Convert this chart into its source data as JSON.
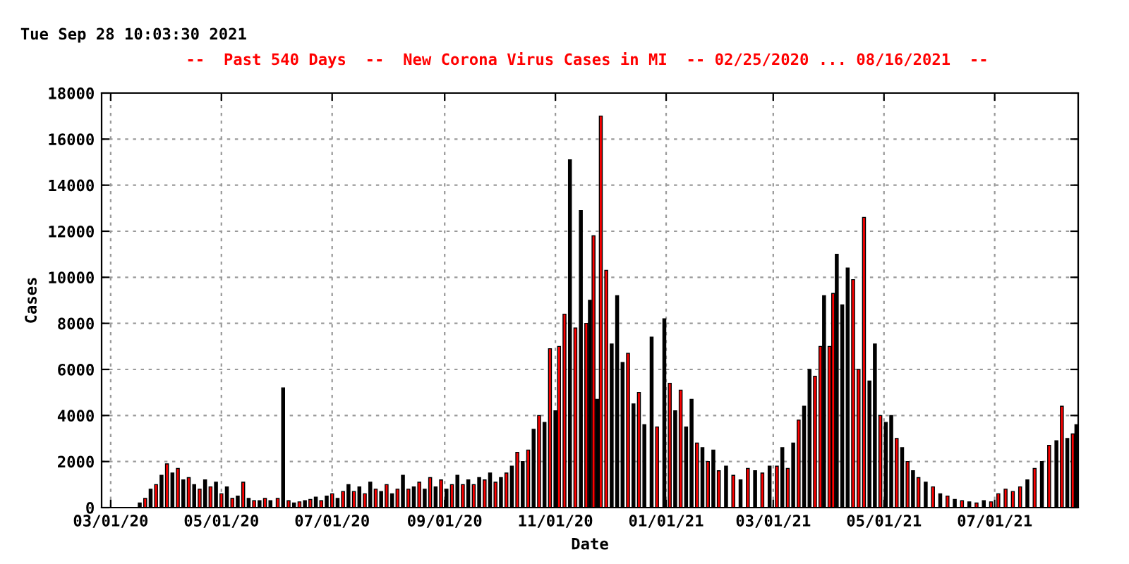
{
  "chart_data": {
    "type": "bar",
    "title": "--  Past 540 Days  --  New Corona Virus Cases in MI  -- 02/25/2020 ... 08/16/2021  --",
    "annotations": [
      "Tue Sep 28 10:03:30 2021"
    ],
    "xlabel": "Date",
    "ylabel": "Cases",
    "series": [
      {
        "color": "#000000",
        "x": [
          "2020-03-17",
          "2020-03-23",
          "2020-03-29",
          "2020-04-04",
          "2020-04-10",
          "2020-04-16",
          "2020-04-22",
          "2020-04-28",
          "2020-05-04",
          "2020-05-10",
          "2020-05-16",
          "2020-05-22",
          "2020-05-28",
          "2020-06-04",
          "2020-06-10",
          "2020-06-16",
          "2020-06-22",
          "2020-06-28",
          "2020-07-04",
          "2020-07-10",
          "2020-07-16",
          "2020-07-22",
          "2020-07-28",
          "2020-08-03",
          "2020-08-09",
          "2020-08-15",
          "2020-08-21",
          "2020-08-27",
          "2020-09-02",
          "2020-09-08",
          "2020-09-14",
          "2020-09-20",
          "2020-09-26",
          "2020-10-02",
          "2020-10-08",
          "2020-10-14",
          "2020-10-20",
          "2020-10-26",
          "2020-11-01",
          "2020-11-09",
          "2020-11-15",
          "2020-11-20",
          "2020-11-24",
          "2020-12-02",
          "2020-12-05",
          "2020-12-08",
          "2020-12-14",
          "2020-12-20",
          "2020-12-24",
          "2020-12-31",
          "2021-01-06",
          "2021-01-12",
          "2021-01-15",
          "2021-01-21",
          "2021-01-27",
          "2021-02-03",
          "2021-02-11",
          "2021-02-19",
          "2021-02-27",
          "2021-03-06",
          "2021-03-12",
          "2021-03-18",
          "2021-03-21",
          "2021-03-29",
          "2021-04-05",
          "2021-04-08",
          "2021-04-11",
          "2021-04-23",
          "2021-04-26",
          "2021-05-02",
          "2021-05-05",
          "2021-05-11",
          "2021-05-17",
          "2021-05-24",
          "2021-06-01",
          "2021-06-09",
          "2021-06-17",
          "2021-06-25",
          "2021-07-19",
          "2021-07-27",
          "2021-08-04",
          "2021-08-10",
          "2021-08-15"
        ],
        "values": [
          200,
          800,
          1400,
          1500,
          1200,
          1000,
          1200,
          1100,
          900,
          500,
          400,
          300,
          300,
          5200,
          200,
          300,
          450,
          500,
          400,
          1000,
          900,
          1100,
          700,
          600,
          1400,
          900,
          800,
          900,
          800,
          1400,
          1200,
          1300,
          1500,
          1300,
          1800,
          2000,
          3400,
          3700,
          4200,
          15100,
          12900,
          9000,
          4700,
          7100,
          9200,
          6300,
          4500,
          3600,
          7400,
          8200,
          4200,
          3500,
          4700,
          2600,
          2500,
          1800,
          1200,
          1600,
          1800,
          2600,
          2800,
          4400,
          6000,
          9200,
          11000,
          8800,
          10400,
          5500,
          7100,
          3700,
          4000,
          2600,
          1600,
          1100,
          600,
          350,
          250,
          300,
          1200,
          2000,
          2900,
          3000,
          3600
        ]
      },
      {
        "color": "#ff0000",
        "x": [
          "2020-03-20",
          "2020-03-26",
          "2020-04-01",
          "2020-04-07",
          "2020-04-13",
          "2020-04-19",
          "2020-04-25",
          "2020-05-01",
          "2020-05-07",
          "2020-05-13",
          "2020-05-19",
          "2020-05-25",
          "2020-06-01",
          "2020-06-07",
          "2020-06-13",
          "2020-06-19",
          "2020-06-25",
          "2020-07-01",
          "2020-07-07",
          "2020-07-13",
          "2020-07-19",
          "2020-07-25",
          "2020-07-31",
          "2020-08-06",
          "2020-08-12",
          "2020-08-18",
          "2020-08-24",
          "2020-08-30",
          "2020-09-05",
          "2020-09-11",
          "2020-09-17",
          "2020-09-23",
          "2020-09-29",
          "2020-10-05",
          "2020-10-11",
          "2020-10-17",
          "2020-10-23",
          "2020-10-29",
          "2020-11-03",
          "2020-11-06",
          "2020-11-12",
          "2020-11-18",
          "2020-11-22",
          "2020-11-26",
          "2020-11-29",
          "2020-12-11",
          "2020-12-17",
          "2020-12-27",
          "2021-01-03",
          "2021-01-09",
          "2021-01-18",
          "2021-01-24",
          "2021-01-30",
          "2021-02-07",
          "2021-02-15",
          "2021-02-23",
          "2021-03-03",
          "2021-03-09",
          "2021-03-15",
          "2021-03-24",
          "2021-03-27",
          "2021-04-01",
          "2021-04-03",
          "2021-04-14",
          "2021-04-17",
          "2021-04-20",
          "2021-04-29",
          "2021-05-08",
          "2021-05-14",
          "2021-05-20",
          "2021-05-28",
          "2021-06-05",
          "2021-06-13",
          "2021-06-21",
          "2021-06-29",
          "2021-07-03",
          "2021-07-07",
          "2021-07-11",
          "2021-07-15",
          "2021-07-23",
          "2021-07-31",
          "2021-08-07",
          "2021-08-13"
        ],
        "values": [
          400,
          1000,
          1900,
          1700,
          1300,
          800,
          900,
          600,
          400,
          1100,
          300,
          400,
          400,
          300,
          250,
          350,
          300,
          600,
          700,
          700,
          600,
          800,
          1000,
          800,
          800,
          1100,
          1300,
          1200,
          1000,
          1000,
          1000,
          1200,
          1100,
          1500,
          2400,
          2500,
          4000,
          6900,
          7000,
          8400,
          7800,
          8000,
          11800,
          17000,
          10300,
          6700,
          5000,
          3500,
          5400,
          5100,
          2800,
          2000,
          1600,
          1400,
          1700,
          1500,
          1800,
          1700,
          3800,
          5700,
          7000,
          7000,
          9300,
          9900,
          6000,
          12600,
          4000,
          3000,
          2000,
          1300,
          900,
          500,
          300,
          200,
          250,
          600,
          800,
          700,
          900,
          1700,
          2700,
          4400,
          3200
        ]
      }
    ],
    "xlim": [
      "2020-02-25",
      "2021-08-16"
    ],
    "xticks": [
      {
        "value": "2020-03-01",
        "label": "03/01/20"
      },
      {
        "value": "2020-05-01",
        "label": "05/01/20"
      },
      {
        "value": "2020-07-01",
        "label": "07/01/20"
      },
      {
        "value": "2020-09-01",
        "label": "09/01/20"
      },
      {
        "value": "2020-11-01",
        "label": "11/01/20"
      },
      {
        "value": "2021-01-01",
        "label": "01/01/21"
      },
      {
        "value": "2021-03-01",
        "label": "03/01/21"
      },
      {
        "value": "2021-05-01",
        "label": "05/01/21"
      },
      {
        "value": "2021-07-01",
        "label": "07/01/21"
      }
    ],
    "ylim": [
      0,
      18000
    ],
    "yticks": [
      0,
      2000,
      4000,
      6000,
      8000,
      10000,
      12000,
      14000,
      16000,
      18000
    ],
    "grid": true
  }
}
